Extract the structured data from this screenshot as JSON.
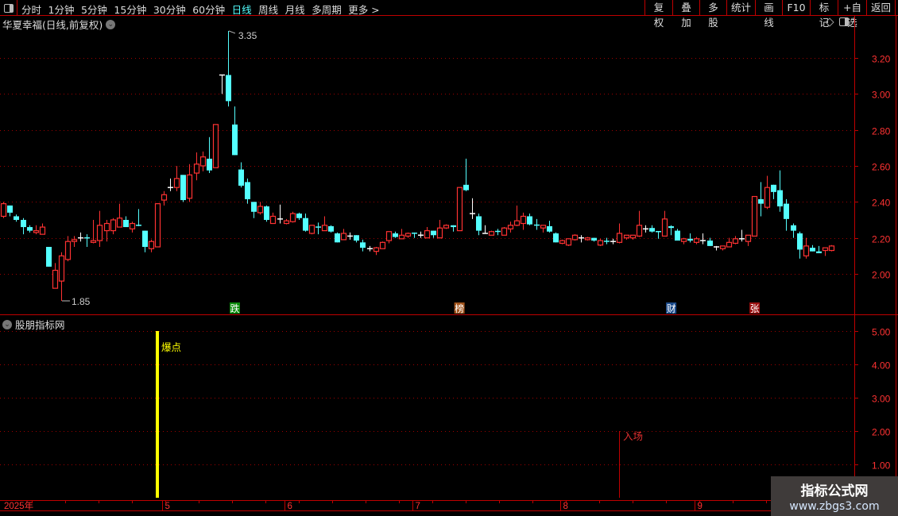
{
  "toolbar": {
    "periods": [
      "分时",
      "1分钟",
      "5分钟",
      "15分钟",
      "30分钟",
      "60分钟",
      "日线",
      "周线",
      "月线",
      "多周期",
      "更多 >"
    ],
    "active_period": "日线",
    "buttons": [
      "复权",
      "叠加",
      "多股",
      "统计",
      "画线",
      "F10",
      "标记",
      "+自选",
      "返回"
    ]
  },
  "main": {
    "title": "华夏幸福(日线,前复权)"
  },
  "indicator": {
    "title": "股朋指标网"
  },
  "colors": {
    "up": "#ff3232",
    "down": "#54ffff",
    "doji": "#ffffff",
    "axis": "#c00000",
    "grid": "#a00000",
    "signal": "#ffff00"
  },
  "watermark": {
    "name": "指标公式网",
    "url": "www.zbgs3.com"
  },
  "chart_data": [
    {
      "type": "candlestick",
      "ylim": [
        1.8,
        3.4
      ],
      "yticks": [
        "3.20",
        "3.00",
        "2.80",
        "2.60",
        "2.40",
        "2.20",
        "2.00"
      ],
      "grid": true,
      "annotations": {
        "high": "3.35",
        "low": "1.85"
      },
      "x_ticks": [
        {
          "label": "2025年",
          "index": 0
        },
        {
          "label": "5",
          "index": 25
        },
        {
          "label": "6",
          "index": 44
        },
        {
          "label": "7",
          "index": 64
        },
        {
          "label": "8",
          "index": 87
        },
        {
          "label": "9",
          "index": 108
        }
      ],
      "markers": [
        {
          "label": "跌",
          "index": 36,
          "bg": "#0a8a0a"
        },
        {
          "label": "榜",
          "index": 71,
          "bg": "#a0521a"
        },
        {
          "label": "财",
          "index": 104,
          "bg": "#1a4a8a"
        },
        {
          "label": "张",
          "index": 117,
          "bg": "#9a1010"
        }
      ],
      "ohlc": [
        [
          2.32,
          2.4,
          2.31,
          2.39
        ],
        [
          2.38,
          2.38,
          2.32,
          2.34
        ],
        [
          2.32,
          2.33,
          2.29,
          2.3
        ],
        [
          2.3,
          2.31,
          2.22,
          2.26
        ],
        [
          2.26,
          2.27,
          2.23,
          2.24
        ],
        [
          2.23,
          2.27,
          2.22,
          2.24
        ],
        [
          2.22,
          2.28,
          2.22,
          2.26
        ],
        [
          2.15,
          2.15,
          2.04,
          2.04
        ],
        [
          1.92,
          2.06,
          1.92,
          2.02
        ],
        [
          1.96,
          2.12,
          1.85,
          2.1
        ],
        [
          2.08,
          2.21,
          2.07,
          2.18
        ],
        [
          2.18,
          2.21,
          2.15,
          2.19
        ],
        [
          2.2,
          2.23,
          2.18,
          2.2
        ],
        [
          2.2,
          2.22,
          2.15,
          2.195
        ],
        [
          2.175,
          2.3,
          2.17,
          2.185
        ],
        [
          2.185,
          2.35,
          2.15,
          2.27
        ],
        [
          2.24,
          2.3,
          2.18,
          2.28
        ],
        [
          2.24,
          2.31,
          2.22,
          2.3
        ],
        [
          2.26,
          2.39,
          2.26,
          2.31
        ],
        [
          2.3,
          2.32,
          2.26,
          2.26
        ],
        [
          2.25,
          2.29,
          2.23,
          2.28
        ],
        [
          2.27,
          2.36,
          2.265,
          2.265
        ],
        [
          2.24,
          2.24,
          2.12,
          2.15
        ],
        [
          2.14,
          2.19,
          2.12,
          2.18
        ],
        [
          2.15,
          2.39,
          2.15,
          2.39
        ],
        [
          2.41,
          2.46,
          2.38,
          2.44
        ],
        [
          2.48,
          2.53,
          2.46,
          2.48
        ],
        [
          2.48,
          2.6,
          2.46,
          2.53
        ],
        [
          2.55,
          2.55,
          2.4,
          2.41
        ],
        [
          2.42,
          2.61,
          2.4,
          2.55
        ],
        [
          2.56,
          2.675,
          2.52,
          2.61
        ],
        [
          2.6,
          2.68,
          2.57,
          2.65
        ],
        [
          2.64,
          2.76,
          2.56,
          2.575
        ],
        [
          2.59,
          2.83,
          2.59,
          2.83
        ],
        [
          3.105,
          3.105,
          3.0,
          3.105
        ],
        [
          3.105,
          3.35,
          2.93,
          2.96
        ],
        [
          2.83,
          2.93,
          2.66,
          2.66
        ],
        [
          2.58,
          2.62,
          2.48,
          2.49
        ],
        [
          2.51,
          2.53,
          2.39,
          2.415
        ],
        [
          2.4,
          2.4,
          2.31,
          2.345
        ],
        [
          2.34,
          2.4,
          2.33,
          2.375
        ],
        [
          2.375,
          2.38,
          2.29,
          2.3
        ],
        [
          2.28,
          2.34,
          2.28,
          2.32
        ],
        [
          2.305,
          2.385,
          2.28,
          2.305
        ],
        [
          2.28,
          2.305,
          2.275,
          2.295
        ],
        [
          2.29,
          2.345,
          2.285,
          2.335
        ],
        [
          2.335,
          2.34,
          2.3,
          2.31
        ],
        [
          2.31,
          2.335,
          2.235,
          2.24
        ],
        [
          2.225,
          2.27,
          2.22,
          2.27
        ],
        [
          2.26,
          2.285,
          2.22,
          2.255
        ],
        [
          2.24,
          2.32,
          2.24,
          2.27
        ],
        [
          2.265,
          2.27,
          2.23,
          2.235
        ],
        [
          2.225,
          2.23,
          2.175,
          2.175
        ],
        [
          2.19,
          2.25,
          2.19,
          2.225
        ],
        [
          2.21,
          2.23,
          2.19,
          2.21
        ],
        [
          2.215,
          2.215,
          2.175,
          2.185
        ],
        [
          2.175,
          2.19,
          2.125,
          2.145
        ],
        [
          2.14,
          2.155,
          2.125,
          2.14
        ],
        [
          2.125,
          2.15,
          2.105,
          2.145
        ],
        [
          2.14,
          2.18,
          2.14,
          2.175
        ],
        [
          2.185,
          2.235,
          2.17,
          2.235
        ],
        [
          2.225,
          2.235,
          2.2,
          2.205
        ],
        [
          2.195,
          2.25,
          2.195,
          2.215
        ],
        [
          2.21,
          2.23,
          2.2,
          2.225
        ],
        [
          2.226,
          2.23,
          2.2,
          2.224
        ],
        [
          2.215,
          2.235,
          2.2,
          2.215
        ],
        [
          2.2,
          2.26,
          2.2,
          2.24
        ],
        [
          2.24,
          2.24,
          2.2,
          2.215
        ],
        [
          2.2,
          2.3,
          2.2,
          2.255
        ],
        [
          2.255,
          2.275,
          2.25,
          2.27
        ],
        [
          2.27,
          2.27,
          2.235,
          2.26
        ],
        [
          2.24,
          2.48,
          2.24,
          2.48
        ],
        [
          2.495,
          2.64,
          2.46,
          2.465
        ],
        [
          2.335,
          2.42,
          2.305,
          2.335
        ],
        [
          2.32,
          2.335,
          2.215,
          2.24
        ],
        [
          2.225,
          2.27,
          2.225,
          2.225
        ],
        [
          2.215,
          2.24,
          2.215,
          2.235
        ],
        [
          2.236,
          2.25,
          2.215,
          2.234
        ],
        [
          2.215,
          2.26,
          2.215,
          2.255
        ],
        [
          2.25,
          2.29,
          2.23,
          2.27
        ],
        [
          2.27,
          2.38,
          2.265,
          2.295
        ],
        [
          2.28,
          2.34,
          2.245,
          2.32
        ],
        [
          2.32,
          2.335,
          2.27,
          2.275
        ],
        [
          2.271,
          2.305,
          2.245,
          2.269
        ],
        [
          2.255,
          2.27,
          2.23,
          2.27
        ],
        [
          2.265,
          2.295,
          2.23,
          2.235
        ],
        [
          2.225,
          2.23,
          2.175,
          2.175
        ],
        [
          2.17,
          2.19,
          2.165,
          2.185
        ],
        [
          2.16,
          2.195,
          2.155,
          2.195
        ],
        [
          2.19,
          2.22,
          2.185,
          2.215
        ],
        [
          2.2,
          2.215,
          2.175,
          2.2
        ],
        [
          2.19,
          2.205,
          2.185,
          2.2
        ],
        [
          2.2,
          2.2,
          2.18,
          2.185
        ],
        [
          2.16,
          2.195,
          2.155,
          2.185
        ],
        [
          2.181,
          2.2,
          2.165,
          2.179
        ],
        [
          2.18,
          2.195,
          2.165,
          2.18
        ],
        [
          2.175,
          2.28,
          2.17,
          2.225
        ],
        [
          2.2,
          2.215,
          2.19,
          2.215
        ],
        [
          2.2,
          2.215,
          2.19,
          2.215
        ],
        [
          2.21,
          2.35,
          2.205,
          2.27
        ],
        [
          2.25,
          2.27,
          2.23,
          2.25
        ],
        [
          2.255,
          2.27,
          2.23,
          2.235
        ],
        [
          2.235,
          2.235,
          2.195,
          2.23
        ],
        [
          2.21,
          2.35,
          2.21,
          2.305
        ],
        [
          2.265,
          2.27,
          2.215,
          2.255
        ],
        [
          2.24,
          2.25,
          2.185,
          2.185
        ],
        [
          2.18,
          2.2,
          2.165,
          2.195
        ],
        [
          2.195,
          2.225,
          2.175,
          2.185
        ],
        [
          2.175,
          2.205,
          2.165,
          2.195
        ],
        [
          2.185,
          2.225,
          2.165,
          2.185
        ],
        [
          2.185,
          2.2,
          2.155,
          2.155
        ],
        [
          2.15,
          2.155,
          2.13,
          2.15
        ],
        [
          2.14,
          2.155,
          2.13,
          2.155
        ],
        [
          2.15,
          2.2,
          2.15,
          2.175
        ],
        [
          2.17,
          2.21,
          2.165,
          2.195
        ],
        [
          2.195,
          2.245,
          2.18,
          2.195
        ],
        [
          2.18,
          2.215,
          2.155,
          2.215
        ],
        [
          2.21,
          2.43,
          2.21,
          2.43
        ],
        [
          2.415,
          2.51,
          2.32,
          2.39
        ],
        [
          2.37,
          2.545,
          2.36,
          2.48
        ],
        [
          2.495,
          2.495,
          2.415,
          2.455
        ],
        [
          2.465,
          2.575,
          2.345,
          2.375
        ],
        [
          2.39,
          2.415,
          2.24,
          2.305
        ],
        [
          2.27,
          2.28,
          2.2,
          2.24
        ],
        [
          2.225,
          2.235,
          2.085,
          2.135
        ],
        [
          2.1,
          2.2,
          2.085,
          2.155
        ],
        [
          2.145,
          2.16,
          2.125,
          2.125
        ],
        [
          2.125,
          2.155,
          2.115,
          2.115
        ],
        [
          2.13,
          2.145,
          2.1,
          2.145
        ],
        [
          2.13,
          2.16,
          2.125,
          2.155
        ]
      ]
    },
    {
      "type": "bar",
      "ylim": [
        0,
        5
      ],
      "yticks": [
        "5.00",
        "4.00",
        "3.00",
        "2.00",
        "1.00"
      ],
      "signals": [
        {
          "label": "爆点",
          "index": 24,
          "value": 5,
          "color": "#ffff00",
          "text_color": "#ffff00"
        },
        {
          "label": "入场",
          "index": 96,
          "value": 2,
          "color": "#c00000",
          "text_color": "#e03030"
        }
      ]
    }
  ]
}
